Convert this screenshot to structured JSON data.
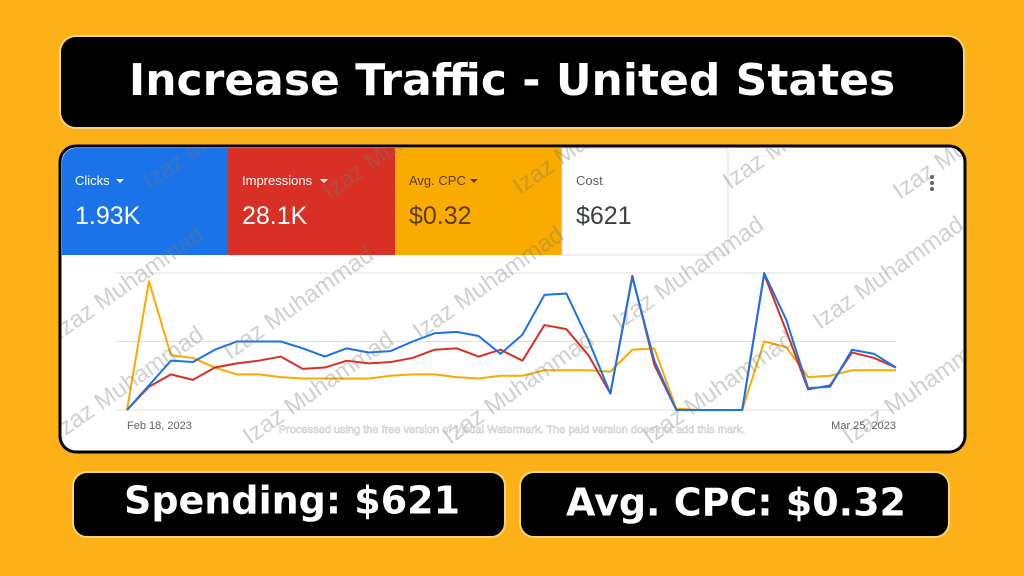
{
  "header": {
    "title": "Increase Traffic - United States"
  },
  "metrics": [
    {
      "label": "Clicks",
      "value": "1.93K"
    },
    {
      "label": "Impressions",
      "value": "28.1K"
    },
    {
      "label": "Avg. CPC",
      "value": "$0.32"
    },
    {
      "label": "Cost",
      "value": "$621"
    }
  ],
  "watermark": "Izaz Muhammad",
  "notice": "Processed using the free version of Visual Watermark. The paid version does not add this mark.",
  "chart_data": {
    "type": "line",
    "categories": [
      "Feb 18, 2023",
      null,
      null,
      null,
      null,
      null,
      null,
      null,
      null,
      null,
      null,
      null,
      null,
      null,
      null,
      null,
      null,
      null,
      null,
      null,
      null,
      null,
      null,
      null,
      null,
      null,
      null,
      null,
      null,
      null,
      null,
      null,
      null,
      null,
      null,
      "Mar 25, 2023"
    ],
    "series": [
      {
        "name": "Clicks",
        "color": "#1a73e8",
        "values": [
          0,
          18,
          36,
          35,
          44,
          50,
          50,
          50,
          45,
          39,
          45,
          42,
          43,
          50,
          56,
          57,
          54,
          41,
          55,
          84,
          85,
          51,
          12,
          97,
          36,
          0,
          0,
          0,
          0,
          100,
          66,
          16,
          17,
          44,
          41,
          31
        ]
      },
      {
        "name": "Impressions",
        "color": "#d93025",
        "values": [
          0,
          17,
          26,
          22,
          31,
          34,
          36,
          39,
          30,
          31,
          36,
          34,
          35,
          38,
          44,
          45,
          39,
          44,
          36,
          62,
          59,
          40,
          12,
          98,
          33,
          0,
          0,
          0,
          0,
          99,
          58,
          15,
          18,
          42,
          38,
          31
        ]
      },
      {
        "name": "Avg. CPC",
        "color": "#f9ab00",
        "values": [
          0,
          94,
          40,
          38,
          31,
          26,
          26,
          24,
          23,
          23,
          23,
          23,
          25,
          26,
          26,
          24,
          23,
          25,
          25,
          29,
          29,
          29,
          28,
          44,
          45,
          1,
          0,
          0,
          0,
          50,
          46,
          24,
          25,
          29,
          29,
          29
        ]
      }
    ],
    "ylim": [
      0,
      100
    ],
    "grid": true
  },
  "footer": {
    "spending": "Spending: $621",
    "cpc": "Avg. CPC: $0.32"
  }
}
